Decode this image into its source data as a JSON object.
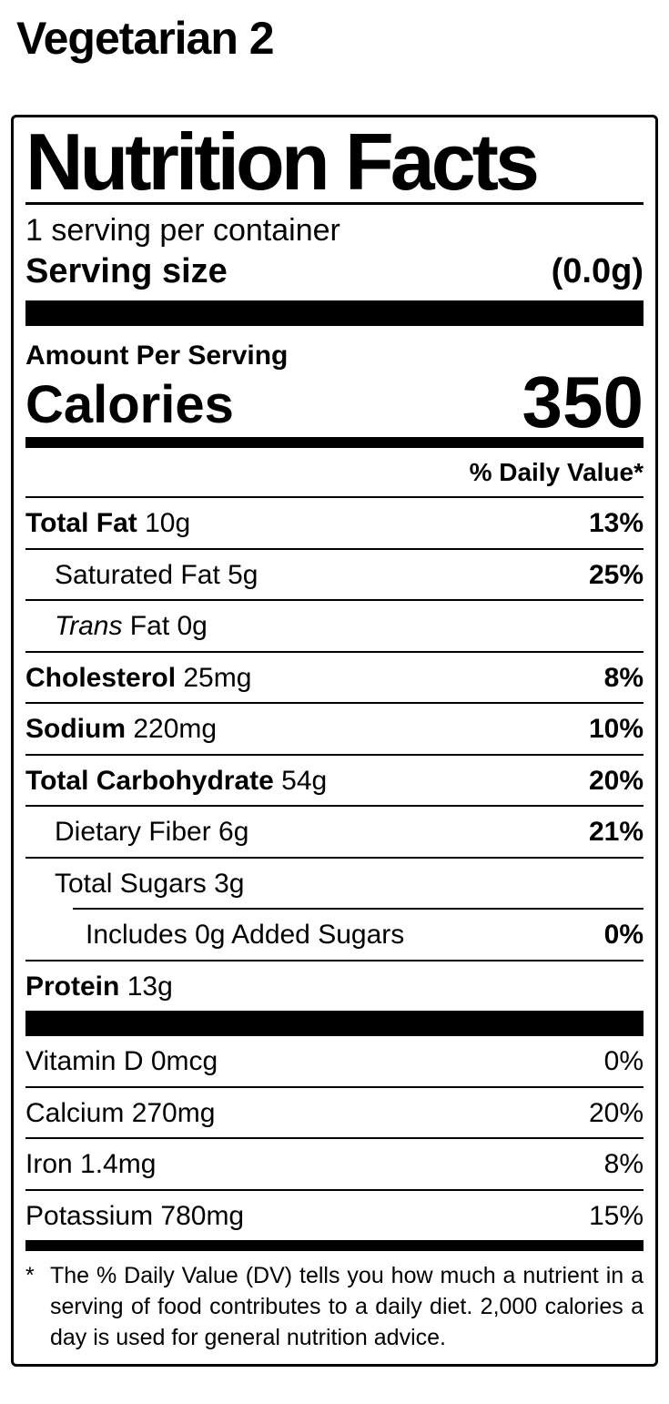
{
  "page": {
    "title": "Vegetarian 2"
  },
  "label": {
    "title": "Nutrition Facts",
    "servings_per_container": "1 serving per container",
    "serving_size": {
      "label": "Serving size",
      "value": "(0.0g)"
    },
    "amount_per_serving": "Amount Per Serving",
    "calories": {
      "label": "Calories",
      "value": "350"
    },
    "daily_value_header": "% Daily Value*",
    "nutrients": [
      {
        "name": "Total Fat",
        "amount": "10g",
        "percent": "13%",
        "indent": 0,
        "name_bold": true,
        "name_italic": false,
        "percent_bold": true,
        "sep_indented": false
      },
      {
        "name": "Saturated Fat",
        "amount": "5g",
        "percent": "25%",
        "indent": 1,
        "name_bold": false,
        "name_italic": false,
        "percent_bold": true,
        "sep_indented": false
      },
      {
        "name": "Trans",
        "amount": "Fat 0g",
        "percent": "",
        "indent": 1,
        "name_bold": false,
        "name_italic": true,
        "percent_bold": false,
        "sep_indented": false
      },
      {
        "name": "Cholesterol",
        "amount": "25mg",
        "percent": "8%",
        "indent": 0,
        "name_bold": true,
        "name_italic": false,
        "percent_bold": true,
        "sep_indented": false
      },
      {
        "name": "Sodium",
        "amount": "220mg",
        "percent": "10%",
        "indent": 0,
        "name_bold": true,
        "name_italic": false,
        "percent_bold": true,
        "sep_indented": false
      },
      {
        "name": "Total Carbohydrate",
        "amount": "54g",
        "percent": "20%",
        "indent": 0,
        "name_bold": true,
        "name_italic": false,
        "percent_bold": true,
        "sep_indented": false
      },
      {
        "name": "Dietary Fiber",
        "amount": "6g",
        "percent": "21%",
        "indent": 1,
        "name_bold": false,
        "name_italic": false,
        "percent_bold": true,
        "sep_indented": false
      },
      {
        "name": "Total Sugars",
        "amount": "3g",
        "percent": "",
        "indent": 1,
        "name_bold": false,
        "name_italic": false,
        "percent_bold": false,
        "sep_indented": false
      },
      {
        "name": "Includes 0g Added Sugars",
        "amount": "",
        "percent": "0%",
        "indent": 2,
        "name_bold": false,
        "name_italic": false,
        "percent_bold": true,
        "sep_indented": true
      },
      {
        "name": "Protein",
        "amount": "13g",
        "percent": "",
        "indent": 0,
        "name_bold": true,
        "name_italic": false,
        "percent_bold": false,
        "sep_indented": false
      }
    ],
    "vitamins": [
      {
        "name": "Vitamin D 0mcg",
        "percent": "0%"
      },
      {
        "name": "Calcium 270mg",
        "percent": "20%"
      },
      {
        "name": "Iron 1.4mg",
        "percent": "8%"
      },
      {
        "name": "Potassium 780mg",
        "percent": "15%"
      }
    ],
    "footnote": {
      "marker": "*",
      "text": "The % Daily Value (DV) tells you how much a nutrient in a serving of food contributes to a daily diet. 2,000 calories a day is used for general nutrition advice."
    }
  }
}
